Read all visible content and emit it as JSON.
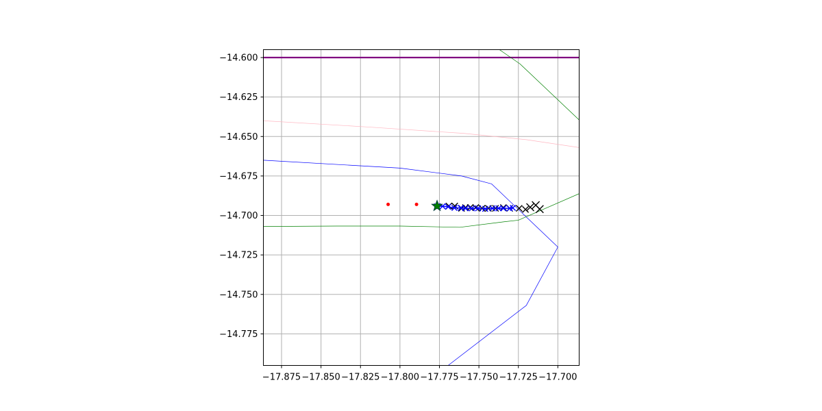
{
  "chart_data": {
    "type": "line",
    "title": "",
    "xlabel": "",
    "ylabel": "",
    "xlim": [
      -17.8865,
      -17.6865
    ],
    "ylim": [
      -14.795,
      -14.595
    ],
    "grid": true,
    "legend": "none",
    "x_ticks": [
      {
        "value": -17.875,
        "label": "−17.875"
      },
      {
        "value": -17.85,
        "label": "−17.850"
      },
      {
        "value": -17.825,
        "label": "−17.825"
      },
      {
        "value": -17.8,
        "label": "−17.800"
      },
      {
        "value": -17.775,
        "label": "−17.775"
      },
      {
        "value": -17.75,
        "label": "−17.750"
      },
      {
        "value": -17.725,
        "label": "−17.725"
      },
      {
        "value": -17.7,
        "label": "−17.700"
      }
    ],
    "y_ticks": [
      {
        "value": -14.6,
        "label": "−14.600"
      },
      {
        "value": -14.625,
        "label": "−14.625"
      },
      {
        "value": -14.65,
        "label": "−14.650"
      },
      {
        "value": -14.675,
        "label": "−14.675"
      },
      {
        "value": -14.7,
        "label": "−14.700"
      },
      {
        "value": -14.725,
        "label": "−14.725"
      },
      {
        "value": -14.75,
        "label": "−14.750"
      },
      {
        "value": -14.775,
        "label": "−14.775"
      }
    ],
    "series": [
      {
        "type": "line",
        "color": "#800080",
        "width": 2.2,
        "points": [
          [
            -17.8865,
            -14.6
          ],
          [
            -17.6865,
            -14.6
          ]
        ]
      },
      {
        "type": "line",
        "color": "#008000",
        "width": 0.7,
        "points": [
          [
            -17.737,
            -14.595
          ],
          [
            -17.724,
            -14.604
          ],
          [
            -17.6865,
            -14.6395
          ]
        ]
      },
      {
        "type": "line",
        "color": "#ffb6c1",
        "width": 0.7,
        "points": [
          [
            -17.8865,
            -14.64
          ],
          [
            -17.82,
            -14.644
          ],
          [
            -17.76,
            -14.648
          ],
          [
            -17.72,
            -14.652
          ],
          [
            -17.6865,
            -14.657
          ]
        ]
      },
      {
        "type": "line",
        "color": "#0000ff",
        "width": 0.7,
        "points": [
          [
            -17.8865,
            -14.665
          ],
          [
            -17.8,
            -14.67
          ],
          [
            -17.761,
            -14.675
          ],
          [
            -17.742,
            -14.68
          ],
          [
            -17.7,
            -14.72
          ],
          [
            -17.72,
            -14.757
          ],
          [
            -17.7695,
            -14.795
          ]
        ]
      },
      {
        "type": "line",
        "color": "#008000",
        "width": 0.7,
        "points": [
          [
            -17.8865,
            -14.707
          ],
          [
            -17.84,
            -14.7067
          ],
          [
            -17.8,
            -14.7067
          ],
          [
            -17.762,
            -14.7075
          ],
          [
            -17.734,
            -14.704
          ],
          [
            -17.725,
            -14.703
          ],
          [
            -17.6865,
            -14.6862
          ]
        ]
      },
      {
        "type": "markers",
        "marker": "dot",
        "color": "#ff0000",
        "size": 2.5,
        "points": [
          [
            -17.8075,
            -14.693
          ],
          [
            -17.7895,
            -14.693
          ]
        ]
      },
      {
        "type": "markers",
        "marker": "x",
        "color": "#000000",
        "size": 4.5,
        "points": [
          [
            -17.769,
            -14.694
          ],
          [
            -17.7653,
            -14.694
          ],
          [
            -17.761,
            -14.6955
          ],
          [
            -17.7585,
            -14.695
          ],
          [
            -17.7555,
            -14.695
          ],
          [
            -17.752,
            -14.695
          ],
          [
            -17.748,
            -14.6955
          ],
          [
            -17.744,
            -14.6955
          ],
          [
            -17.7395,
            -14.6955
          ],
          [
            -17.7345,
            -14.695
          ],
          [
            -17.7305,
            -14.6955
          ],
          [
            -17.7245,
            -14.6955
          ],
          [
            -17.7205,
            -14.6962
          ]
        ]
      },
      {
        "type": "markers",
        "marker": "x",
        "color": "#000000",
        "size": 5.5,
        "points": [
          [
            -17.7175,
            -14.6948
          ],
          [
            -17.714,
            -14.6935
          ],
          [
            -17.7115,
            -14.696
          ]
        ]
      },
      {
        "type": "polyline-markers",
        "marker": "x",
        "color": "#0000ff",
        "width": 1.5,
        "size": 4,
        "points": [
          [
            -17.7765,
            -14.6942
          ],
          [
            -17.773,
            -14.6942
          ],
          [
            -17.7695,
            -14.6945
          ],
          [
            -17.7655,
            -14.6952
          ],
          [
            -17.7615,
            -14.6952
          ],
          [
            -17.7585,
            -14.6955
          ],
          [
            -17.7545,
            -14.6955
          ],
          [
            -17.7505,
            -14.6955
          ],
          [
            -17.746,
            -14.6958
          ],
          [
            -17.7415,
            -14.6955
          ],
          [
            -17.7375,
            -14.6955
          ],
          [
            -17.7345,
            -14.6955
          ],
          [
            -17.7305,
            -14.6955
          ],
          [
            -17.7285,
            -14.6952
          ]
        ]
      },
      {
        "type": "markers",
        "marker": "star",
        "color": "#008000",
        "edge": "#003c3c",
        "size": 8,
        "points": [
          [
            -17.7765,
            -14.694
          ]
        ]
      }
    ]
  }
}
